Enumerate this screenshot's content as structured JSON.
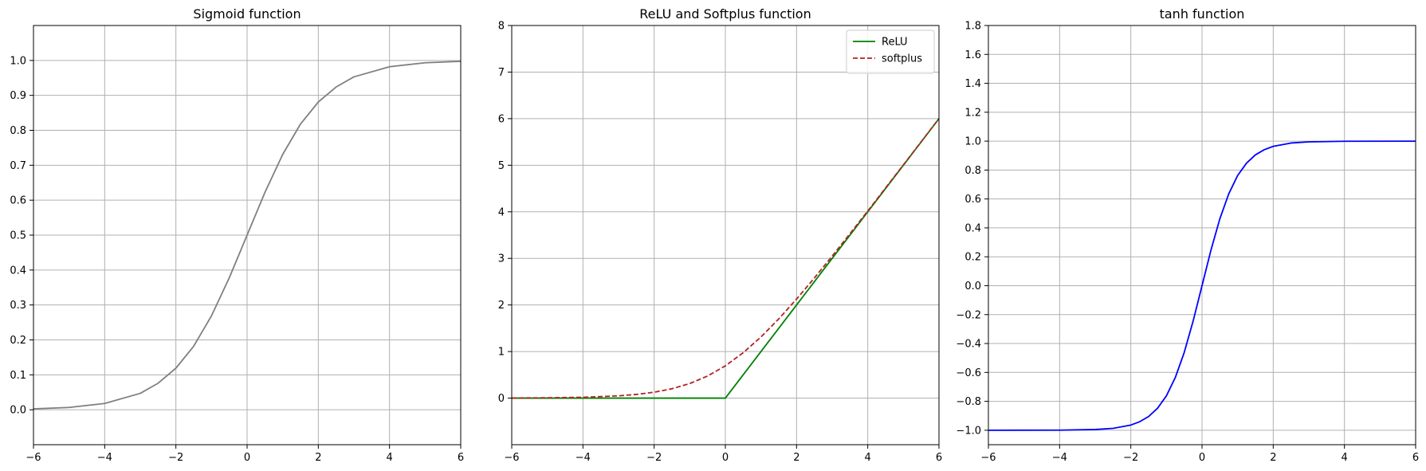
{
  "chart_data": [
    {
      "type": "line",
      "title": "Sigmoid function",
      "xlabel": "",
      "ylabel": "",
      "xlim": [
        -6,
        6
      ],
      "ylim": [
        -0.1,
        1.1
      ],
      "xticks": [
        -6,
        -4,
        -2,
        0,
        2,
        4,
        6
      ],
      "xtick_labels": [
        "−6",
        "−4",
        "−2",
        "0",
        "2",
        "4",
        "6"
      ],
      "yticks": [
        0.0,
        0.1,
        0.2,
        0.3,
        0.4,
        0.5,
        0.6,
        0.7,
        0.8,
        0.9,
        1.0
      ],
      "ytick_labels": [
        "0.0",
        "0.1",
        "0.2",
        "0.3",
        "0.4",
        "0.5",
        "0.6",
        "0.7",
        "0.8",
        "0.9",
        "1.0"
      ],
      "grid": true,
      "legend": null,
      "series": [
        {
          "color": "#808080",
          "style": "solid",
          "x": [
            -6,
            -5,
            -4,
            -3,
            -2.5,
            -2,
            -1.5,
            -1,
            -0.5,
            0,
            0.5,
            1,
            1.5,
            2,
            2.5,
            3,
            4,
            5,
            6
          ],
          "y": [
            0.0025,
            0.0067,
            0.018,
            0.047,
            0.076,
            0.119,
            0.182,
            0.269,
            0.378,
            0.5,
            0.622,
            0.731,
            0.818,
            0.881,
            0.924,
            0.953,
            0.982,
            0.9933,
            0.9975
          ]
        }
      ]
    },
    {
      "type": "line",
      "title": "ReLU and Softplus function",
      "xlabel": "",
      "ylabel": "",
      "xlim": [
        -6,
        6
      ],
      "ylim": [
        -1,
        8
      ],
      "xticks": [
        -6,
        -4,
        -2,
        0,
        2,
        4,
        6
      ],
      "xtick_labels": [
        "−6",
        "−4",
        "−2",
        "0",
        "2",
        "4",
        "6"
      ],
      "yticks": [
        0,
        1,
        2,
        3,
        4,
        5,
        6,
        7,
        8
      ],
      "ytick_labels": [
        "0",
        "1",
        "2",
        "3",
        "4",
        "5",
        "6",
        "7",
        "8"
      ],
      "grid": true,
      "legend": "top-right",
      "series": [
        {
          "name": "ReLU",
          "color": "#008000",
          "style": "solid",
          "x": [
            -6,
            0,
            6
          ],
          "y": [
            0,
            0,
            6
          ]
        },
        {
          "name": "softplus",
          "color": "#b22222",
          "style": "dashed",
          "x": [
            -6,
            -5,
            -4,
            -3,
            -2.5,
            -2,
            -1.5,
            -1,
            -0.5,
            0,
            0.5,
            1,
            1.5,
            2,
            2.5,
            3,
            3.5,
            4,
            5,
            6
          ],
          "y": [
            0.0025,
            0.0067,
            0.018,
            0.049,
            0.079,
            0.127,
            0.201,
            0.313,
            0.474,
            0.693,
            0.974,
            1.313,
            1.701,
            2.127,
            2.579,
            3.049,
            3.53,
            4.018,
            5.007,
            6.002
          ]
        }
      ]
    },
    {
      "type": "line",
      "title": "tanh function",
      "xlabel": "",
      "ylabel": "",
      "xlim": [
        -6,
        6
      ],
      "ylim": [
        -1.1,
        1.8
      ],
      "xticks": [
        -6,
        -4,
        -2,
        0,
        2,
        4,
        6
      ],
      "xtick_labels": [
        "−6",
        "−4",
        "−2",
        "0",
        "2",
        "4",
        "6"
      ],
      "yticks": [
        -1.0,
        -0.8,
        -0.6,
        -0.4,
        -0.2,
        0.0,
        0.2,
        0.4,
        0.6,
        0.8,
        1.0,
        1.2,
        1.4,
        1.6,
        1.8
      ],
      "ytick_labels": [
        "−1.0",
        "−0.8",
        "−0.6",
        "−0.4",
        "−0.2",
        "0.0",
        "0.2",
        "0.4",
        "0.6",
        "0.8",
        "1.0",
        "1.2",
        "1.4",
        "1.6",
        "1.8"
      ],
      "grid": true,
      "legend": null,
      "series": [
        {
          "color": "#0000ff",
          "style": "solid",
          "x": [
            -6,
            -4,
            -3,
            -2.5,
            -2,
            -1.75,
            -1.5,
            -1.25,
            -1,
            -0.75,
            -0.5,
            -0.25,
            0,
            0.25,
            0.5,
            0.75,
            1,
            1.25,
            1.5,
            1.75,
            2,
            2.5,
            3,
            4,
            6
          ],
          "y": [
            -1.0,
            -0.9993,
            -0.995,
            -0.987,
            -0.964,
            -0.941,
            -0.905,
            -0.848,
            -0.762,
            -0.635,
            -0.462,
            -0.245,
            0,
            0.245,
            0.462,
            0.635,
            0.762,
            0.848,
            0.905,
            0.941,
            0.964,
            0.987,
            0.995,
            0.9993,
            1.0
          ]
        }
      ]
    }
  ]
}
